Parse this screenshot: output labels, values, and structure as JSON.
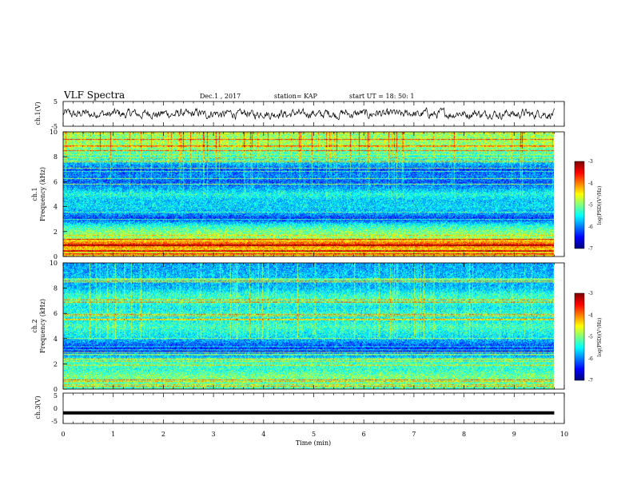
{
  "header": {
    "title": "VLF Spectra",
    "date": "Dec.1 , 2017",
    "station": "station= KAP",
    "start": "start  UT =   18: 50: 1"
  },
  "chart_data": [
    {
      "id": "ch1-waveform",
      "type": "line",
      "ylabel": "ch.1(V)",
      "ylim": [
        -5,
        5
      ],
      "yticks": [
        "5",
        "-5"
      ],
      "xlim": [
        0,
        10
      ],
      "series_extent_min": 9.8,
      "description_level": 0,
      "amplitude": 1.5
    },
    {
      "id": "ch1-spectrogram",
      "type": "heatmap",
      "ylabel_line1": "ch.1",
      "ylabel_line2": "Frequency  (kHz)",
      "ylim": [
        0,
        10
      ],
      "yticks": [
        "0",
        "2",
        "4",
        "6",
        "8",
        "10"
      ],
      "xlim": [
        0,
        10
      ],
      "colorbar": {
        "label": "log(PSD)(V²/Hz)",
        "range": [
          -7,
          -3
        ],
        "ticks": [
          "-3",
          "-4",
          "-5",
          "-6",
          "-7"
        ]
      },
      "band_profile": [
        {
          "f": 0.0,
          "v": -4.6
        },
        {
          "f": 0.5,
          "v": -4.4
        },
        {
          "f": 1.0,
          "v": -3.8
        },
        {
          "f": 1.5,
          "v": -4.9
        },
        {
          "f": 2.0,
          "v": -5.0
        },
        {
          "f": 2.5,
          "v": -5.4
        },
        {
          "f": 3.0,
          "v": -6.3
        },
        {
          "f": 3.5,
          "v": -5.8
        },
        {
          "f": 4.0,
          "v": -5.6
        },
        {
          "f": 4.5,
          "v": -5.7
        },
        {
          "f": 5.0,
          "v": -5.4
        },
        {
          "f": 5.5,
          "v": -5.9
        },
        {
          "f": 6.0,
          "v": -6.2
        },
        {
          "f": 6.5,
          "v": -6.0
        },
        {
          "f": 7.0,
          "v": -6.3
        },
        {
          "f": 7.5,
          "v": -5.8
        },
        {
          "f": 8.0,
          "v": -5.4
        },
        {
          "f": 8.5,
          "v": -5.2
        },
        {
          "f": 9.0,
          "v": -5.0
        },
        {
          "f": 9.5,
          "v": -5.0
        },
        {
          "f": 10.0,
          "v": -5.1
        }
      ]
    },
    {
      "id": "ch2-spectrogram",
      "type": "heatmap",
      "ylabel_line1": "ch.2",
      "ylabel_line2": "Frequency  (kHz)",
      "ylim": [
        0,
        10
      ],
      "yticks": [
        "0",
        "2",
        "4",
        "6",
        "8",
        "10"
      ],
      "xlim": [
        0,
        10
      ],
      "colorbar": {
        "label": "log(PSD)(V²/Hz)",
        "range": [
          -7,
          -3
        ],
        "ticks": [
          "-3",
          "-4",
          "-5",
          "-6",
          "-7"
        ]
      },
      "band_profile": [
        {
          "f": 0.0,
          "v": -5.2
        },
        {
          "f": 0.5,
          "v": -5.1
        },
        {
          "f": 1.0,
          "v": -5.0
        },
        {
          "f": 1.5,
          "v": -5.3
        },
        {
          "f": 2.0,
          "v": -5.2
        },
        {
          "f": 2.5,
          "v": -5.6
        },
        {
          "f": 3.0,
          "v": -6.4
        },
        {
          "f": 3.5,
          "v": -6.1
        },
        {
          "f": 4.0,
          "v": -5.7
        },
        {
          "f": 4.5,
          "v": -5.5
        },
        {
          "f": 5.0,
          "v": -5.3
        },
        {
          "f": 5.5,
          "v": -5.6
        },
        {
          "f": 6.0,
          "v": -5.4
        },
        {
          "f": 6.5,
          "v": -5.6
        },
        {
          "f": 7.0,
          "v": -5.3
        },
        {
          "f": 7.5,
          "v": -5.4
        },
        {
          "f": 8.0,
          "v": -5.8
        },
        {
          "f": 8.5,
          "v": -5.9
        },
        {
          "f": 9.0,
          "v": -5.8
        },
        {
          "f": 9.5,
          "v": -5.9
        },
        {
          "f": 10.0,
          "v": -5.9
        }
      ]
    },
    {
      "id": "ch3-waveform",
      "type": "line",
      "ylabel": "ch.3(V)",
      "ylim": [
        -5,
        5
      ],
      "yticks": [
        "5",
        "0",
        "-5"
      ],
      "xlim": [
        0,
        10
      ],
      "series_extent_min": 9.8,
      "level": -1.5
    }
  ],
  "xaxis": {
    "label": "Time  (min)",
    "ticks": [
      "0",
      "1",
      "2",
      "3",
      "4",
      "5",
      "6",
      "7",
      "8",
      "9",
      "10"
    ]
  }
}
